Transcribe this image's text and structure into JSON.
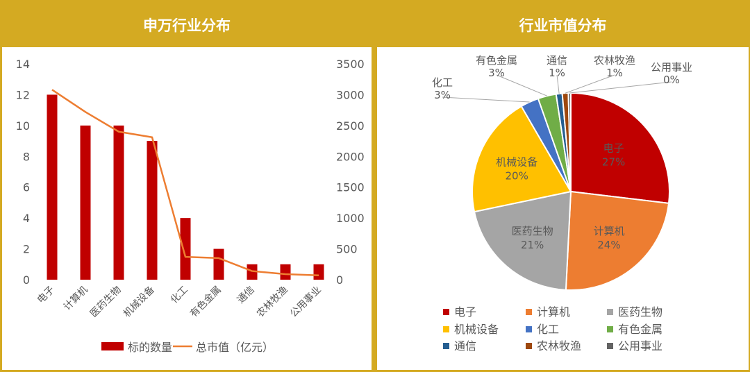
{
  "left_panel": {
    "title": "申万行业分布"
  },
  "right_panel": {
    "title": "行业市值分布"
  },
  "colors": {
    "header_gold": "#D4AA22",
    "bar": "#C00000",
    "line": "#ED7D31",
    "axis_text": "#595959"
  },
  "chart_data": [
    {
      "type": "bar",
      "title": "申万行业分布",
      "categories": [
        "电子",
        "计算机",
        "医药生物",
        "机械设备",
        "化工",
        "有色金属",
        "通信",
        "农林牧渔",
        "公用事业"
      ],
      "series": [
        {
          "name": "标的数量",
          "type": "bar",
          "axis": "left",
          "values": [
            12,
            10,
            10,
            9,
            4,
            2,
            1,
            1,
            1
          ]
        },
        {
          "name": "总市值（亿元）",
          "type": "line",
          "axis": "right",
          "values": [
            3080,
            2720,
            2400,
            2310,
            370,
            350,
            140,
            90,
            70
          ]
        }
      ],
      "ylim": [
        0,
        14
      ],
      "yticks": [
        0,
        2,
        4,
        6,
        8,
        10,
        12,
        14
      ],
      "y2lim": [
        0,
        3500
      ],
      "y2ticks": [
        0,
        500,
        1000,
        1500,
        2000,
        2500,
        3000,
        3500
      ],
      "legend": "bottom",
      "grid": false
    },
    {
      "type": "pie",
      "title": "行业市值分布",
      "slices": [
        {
          "label": "电子",
          "value": 27,
          "display": "27%",
          "color": "#C00000"
        },
        {
          "label": "计算机",
          "value": 24,
          "display": "24%",
          "color": "#ED7D31"
        },
        {
          "label": "医药生物",
          "value": 21,
          "display": "21%",
          "color": "#A5A5A5"
        },
        {
          "label": "机械设备",
          "value": 20,
          "display": "20%",
          "color": "#FFC000"
        },
        {
          "label": "化工",
          "value": 3,
          "display": "3%",
          "color": "#4472C4"
        },
        {
          "label": "有色金属",
          "value": 3,
          "display": "3%",
          "color": "#70AD47"
        },
        {
          "label": "通信",
          "value": 1,
          "display": "1%",
          "color": "#255E91"
        },
        {
          "label": "农林牧渔",
          "value": 1,
          "display": "1%",
          "color": "#9E480E"
        },
        {
          "label": "公用事业",
          "value": 0.4,
          "display": "0%",
          "color": "#636363"
        }
      ],
      "legend": "bottom"
    }
  ]
}
